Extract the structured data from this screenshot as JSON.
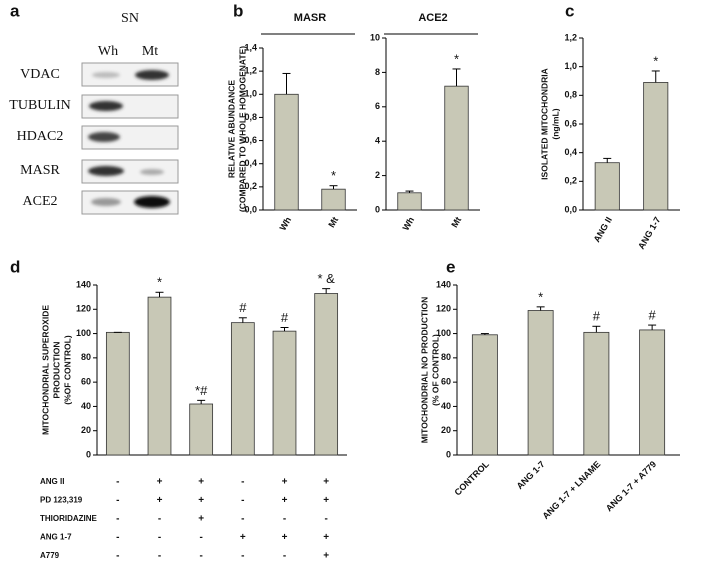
{
  "panel_labels": [
    "a",
    "b",
    "c",
    "d",
    "e"
  ],
  "blot": {
    "title": "SN",
    "lanes": [
      "Wh",
      "Mt"
    ],
    "proteins": [
      "VDAC",
      "TUBULIN",
      "HDAC2",
      "MASR",
      "ACE2"
    ]
  },
  "chart_data": [
    {
      "type": "bar",
      "title": "MASR",
      "ylabel": [
        "RELATIVE ABUNDANCE",
        "(COMPARED TO WHOLE HOMOGENATE)"
      ],
      "categories": [
        "Wh",
        "Mt"
      ],
      "values": [
        1.0,
        0.18
      ],
      "errors": [
        0.18,
        0.03
      ],
      "annotations": [
        null,
        "*"
      ],
      "ylim": [
        0,
        1.4
      ],
      "yticks": [
        {
          "value": 0,
          "label": "0,0"
        },
        {
          "value": 0.2,
          "label": "0,2"
        },
        {
          "value": 0.4,
          "label": "0,4"
        },
        {
          "value": 0.6,
          "label": "0,6"
        },
        {
          "value": 0.8,
          "label": "0,8"
        },
        {
          "value": 1.0,
          "label": "1,0"
        },
        {
          "value": 1.2,
          "label": "1,2"
        },
        {
          "value": 1.4,
          "label": "1,4"
        }
      ],
      "color": "#c8c8b6"
    },
    {
      "type": "bar",
      "title": "ACE2",
      "categories": [
        "Wh",
        "Mt"
      ],
      "values": [
        1.0,
        7.2
      ],
      "errors": [
        0.1,
        1.0
      ],
      "annotations": [
        null,
        "*"
      ],
      "ylim": [
        0,
        10
      ],
      "yticks": [
        0,
        2,
        4,
        6,
        8,
        10
      ],
      "color": "#c8c8b6"
    },
    {
      "type": "bar",
      "ylabel": [
        "ISOLATED MITOCHONDRIA",
        "(ng/mL)"
      ],
      "categories": [
        "ANG II",
        "ANG 1-7"
      ],
      "values": [
        0.33,
        0.89
      ],
      "errors": [
        0.03,
        0.08
      ],
      "annotations": [
        null,
        "*"
      ],
      "ylim": [
        0,
        1.2
      ],
      "yticks": [
        {
          "value": 0,
          "label": "0,0"
        },
        {
          "value": 0.2,
          "label": "0,2"
        },
        {
          "value": 0.4,
          "label": "0,4"
        },
        {
          "value": 0.6,
          "label": "0,6"
        },
        {
          "value": 0.8,
          "label": "0,8"
        },
        {
          "value": 1.0,
          "label": "1,0"
        },
        {
          "value": 1.2,
          "label": "1,2"
        }
      ],
      "color": "#c8c8b6"
    },
    {
      "type": "bar",
      "ylabel": [
        "MITOCHONDRIAL SUPEROXIDE",
        "PRODUCTION",
        "(%OF CONTROL)"
      ],
      "categories": [
        null,
        null,
        null,
        null,
        null,
        null
      ],
      "values": [
        101,
        130,
        42,
        109,
        102,
        133
      ],
      "errors": [
        0,
        4,
        3,
        4,
        3,
        4
      ],
      "annotations": [
        null,
        "*",
        "*#",
        "#",
        "#",
        "* &"
      ],
      "ylim": [
        0,
        140
      ],
      "yticks": [
        0,
        20,
        40,
        60,
        80,
        100,
        120,
        140
      ],
      "color": "#c8c8b6",
      "treatments": [
        {
          "name": "ANG II",
          "signs": [
            "-",
            "+",
            "+",
            "-",
            "+",
            "+"
          ]
        },
        {
          "name": "PD 123,319",
          "signs": [
            "-",
            "+",
            "+",
            "-",
            "+",
            "+"
          ]
        },
        {
          "name": "THIORIDAZINE",
          "signs": [
            "-",
            "-",
            "+",
            "-",
            "-",
            "-"
          ]
        },
        {
          "name": "ANG 1-7",
          "signs": [
            "-",
            "-",
            "-",
            "+",
            "+",
            "+"
          ]
        },
        {
          "name": "A779",
          "signs": [
            "-",
            "-",
            "-",
            "-",
            "-",
            "+"
          ]
        }
      ]
    },
    {
      "type": "bar",
      "ylabel": [
        "MITOCHONDRIAL NO PRODUCTION",
        "(% OF CONTROL)"
      ],
      "categories": [
        "CONTROL",
        "ANG 1-7",
        "ANG 1-7 + LNAME",
        "ANG 1-7 + A779"
      ],
      "values": [
        99,
        119,
        101,
        103
      ],
      "errors": [
        1,
        3,
        5,
        4
      ],
      "annotations": [
        null,
        "*",
        "#",
        "#"
      ],
      "ylim": [
        0,
        140
      ],
      "yticks": [
        0,
        20,
        40,
        60,
        80,
        100,
        120,
        140
      ],
      "color": "#c8c8b6"
    }
  ]
}
